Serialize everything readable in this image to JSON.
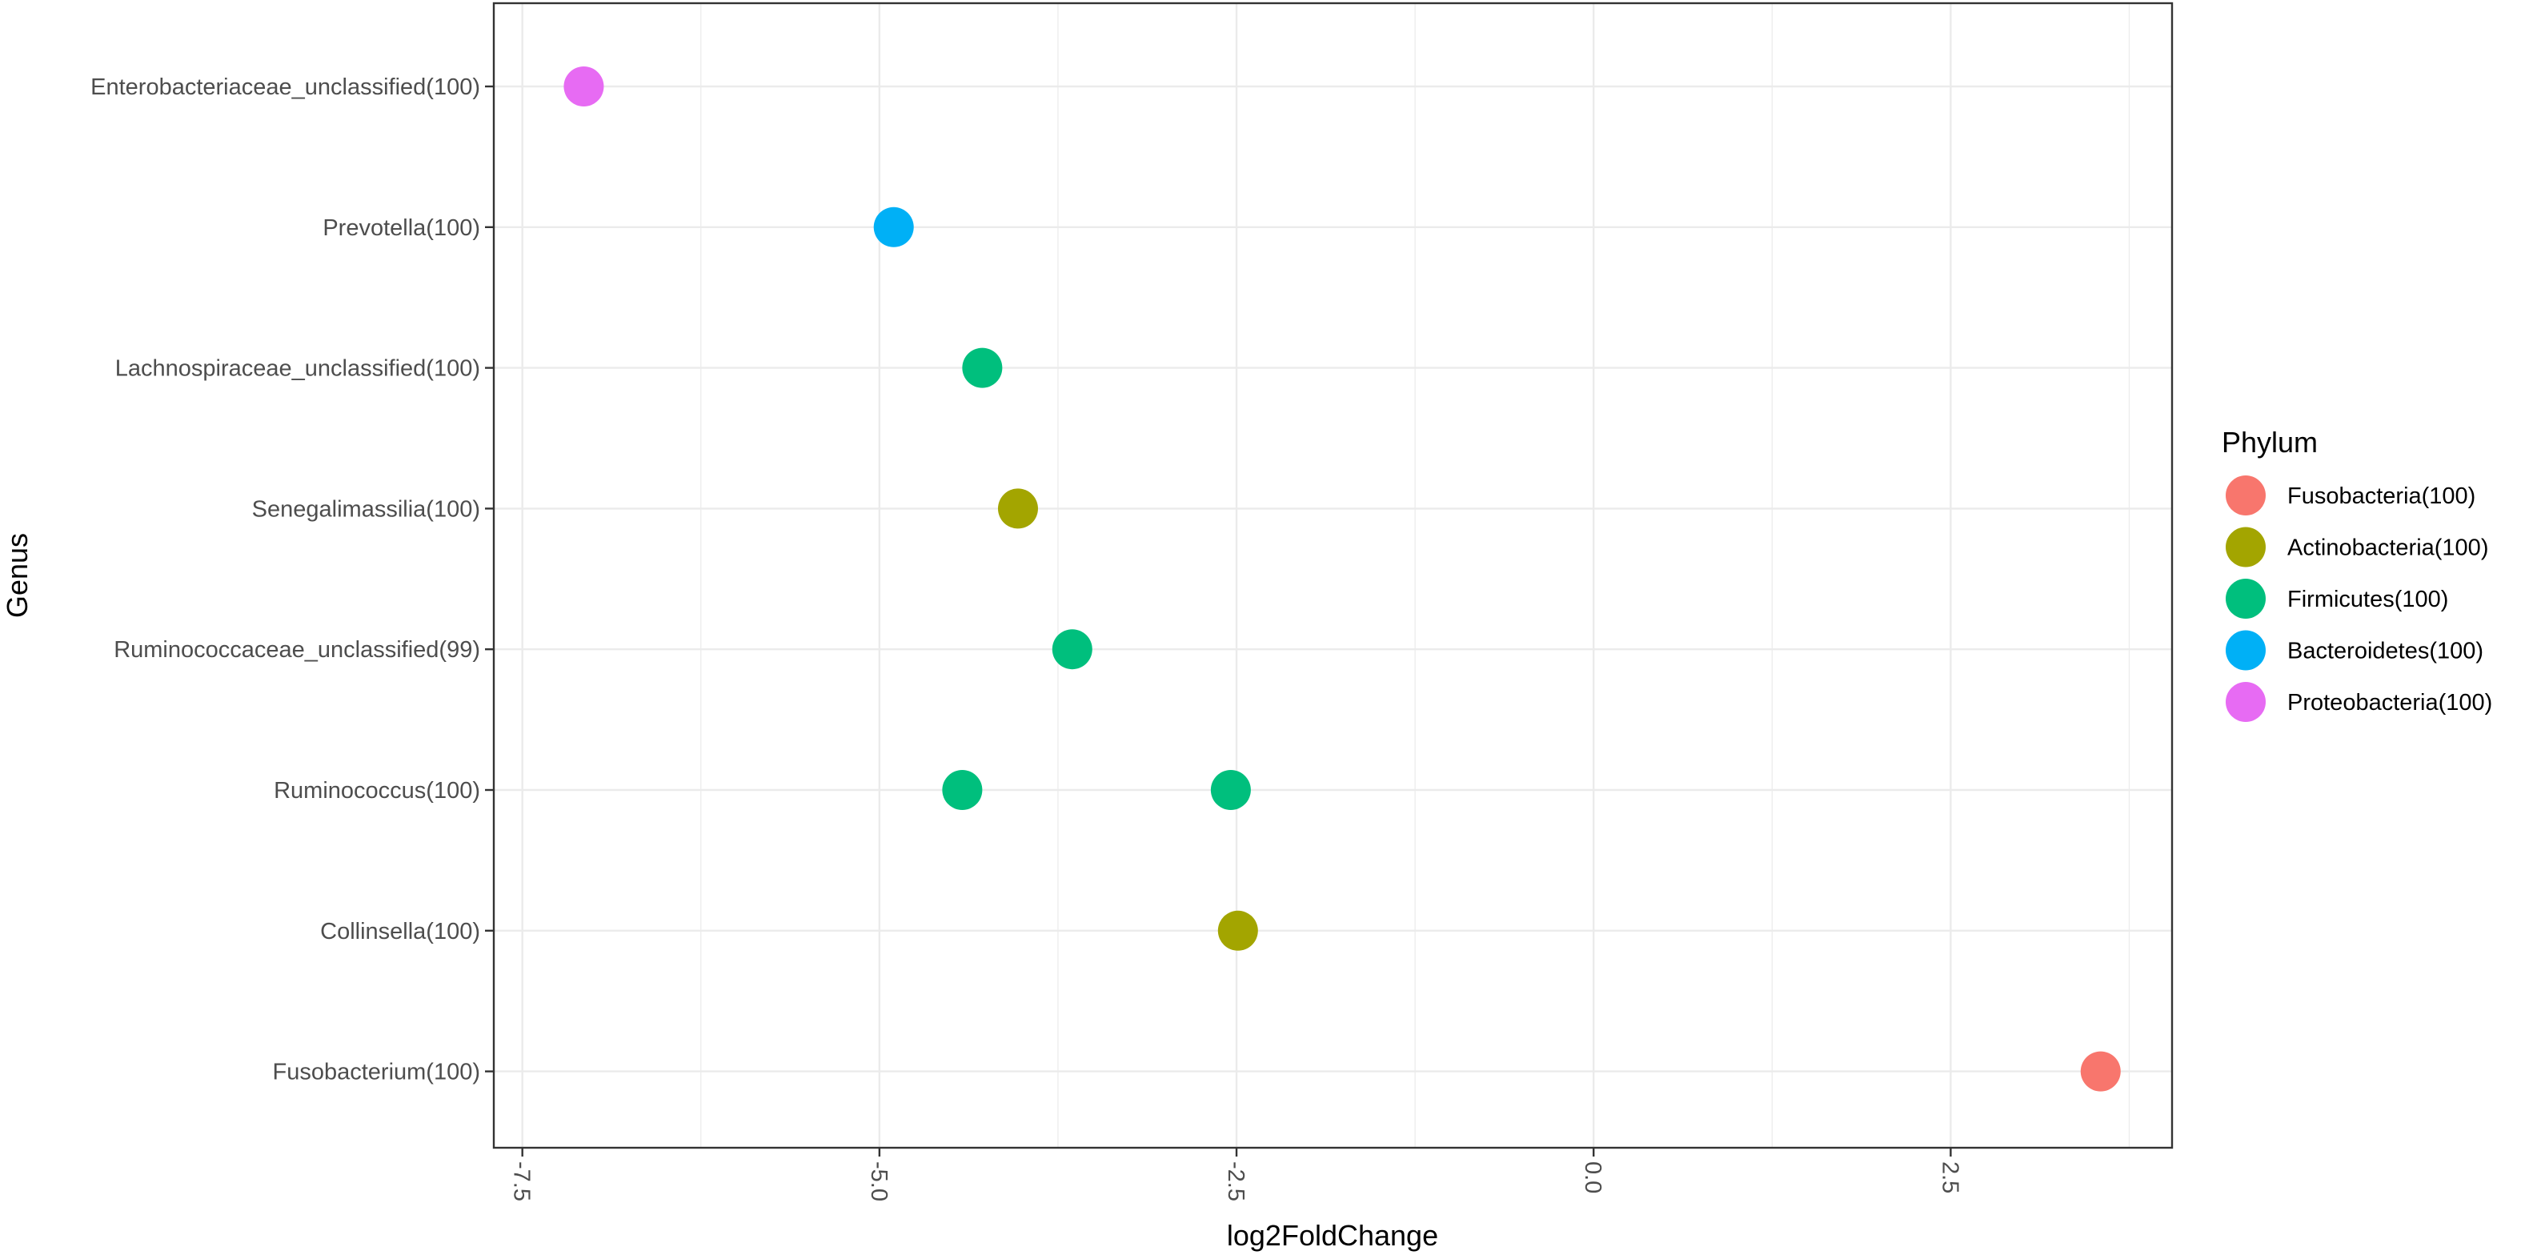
{
  "chart_data": {
    "type": "scatter",
    "xlabel": "log2FoldChange",
    "ylabel": "Genus",
    "xlim": [
      -7.7,
      4.05
    ],
    "x_ticks": [
      -7.5,
      -5.0,
      -2.5,
      0.0,
      2.5
    ],
    "x_tick_labels": [
      "-7.5",
      "-5.0",
      "-2.5",
      "0.0",
      "2.5"
    ],
    "x_tick_label_rotation": "90 (vertical, reading downward)",
    "categories": [
      "Fusobacterium(100)",
      "Collinsella(100)",
      "Ruminococcus(100)",
      "Ruminococcaceae_unclassified(99)",
      "Senegalimassilia(100)",
      "Lachnospiraceae_unclassified(100)",
      "Prevotella(100)",
      "Enterobacteriaceae_unclassified(100)"
    ],
    "grid": true,
    "legend": {
      "title": "Phylum",
      "placement": "right",
      "entries": [
        {
          "label": "Fusobacteria(100)",
          "color": "#F8766D"
        },
        {
          "label": "Actinobacteria(100)",
          "color": "#A3A500"
        },
        {
          "label": "Firmicutes(100)",
          "color": "#00BF7D"
        },
        {
          "label": "Bacteroidetes(100)",
          "color": "#00B0F6"
        },
        {
          "label": "Proteobacteria(100)",
          "color": "#E76BF3"
        }
      ]
    },
    "points": [
      {
        "genus": "Enterobacteriaceae_unclassified(100)",
        "x": -7.07,
        "phylum": "Proteobacteria(100)"
      },
      {
        "genus": "Prevotella(100)",
        "x": -4.9,
        "phylum": "Bacteroidetes(100)"
      },
      {
        "genus": "Lachnospiraceae_unclassified(100)",
        "x": -4.28,
        "phylum": "Firmicutes(100)"
      },
      {
        "genus": "Senegalimassilia(100)",
        "x": -4.03,
        "phylum": "Actinobacteria(100)"
      },
      {
        "genus": "Ruminococcaceae_unclassified(99)",
        "x": -3.65,
        "phylum": "Firmicutes(100)"
      },
      {
        "genus": "Ruminococcus(100)",
        "x": -4.42,
        "phylum": "Firmicutes(100)"
      },
      {
        "genus": "Ruminococcus(100)",
        "x": -2.54,
        "phylum": "Firmicutes(100)"
      },
      {
        "genus": "Collinsella(100)",
        "x": -2.49,
        "phylum": "Actinobacteria(100)"
      },
      {
        "genus": "Fusobacterium(100)",
        "x": 3.55,
        "phylum": "Fusobacteria(100)"
      }
    ]
  }
}
